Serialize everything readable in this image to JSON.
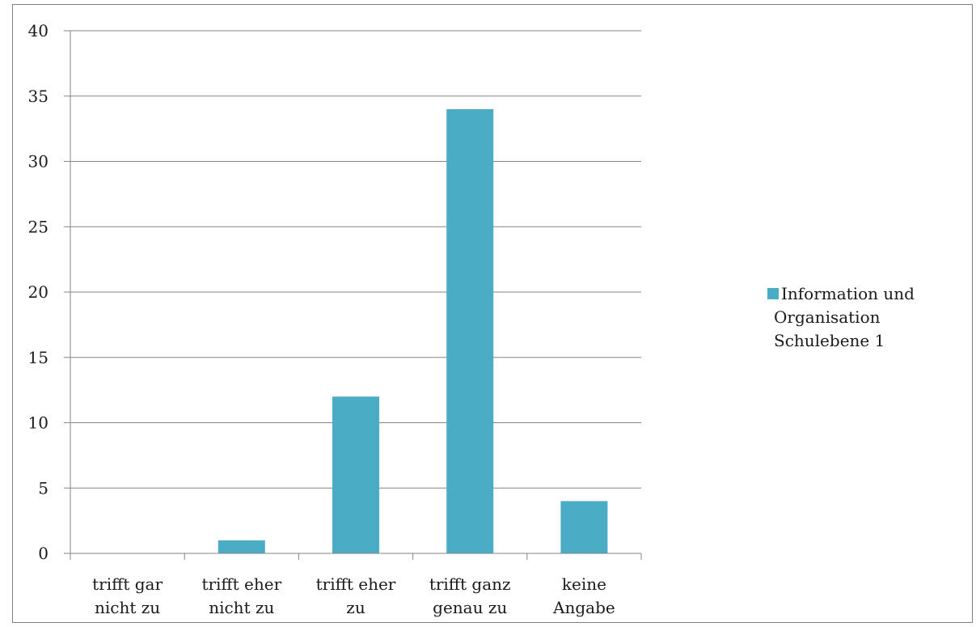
{
  "chart_data": {
    "type": "bar",
    "categories": [
      [
        "trifft gar",
        "nicht zu"
      ],
      [
        "trifft eher",
        "nicht zu"
      ],
      [
        "trifft eher",
        "zu"
      ],
      [
        "trifft ganz",
        "genau zu"
      ],
      [
        "keine",
        "Angabe"
      ]
    ],
    "series": [
      {
        "name": [
          "Information und",
          "Organisation",
          "Schulebene 1"
        ],
        "values": [
          0,
          1,
          12,
          34,
          4
        ],
        "color": "#4bacc6"
      }
    ],
    "ylim": [
      0,
      40
    ],
    "yticks": [
      0,
      5,
      10,
      15,
      20,
      25,
      30,
      35,
      40
    ],
    "grid": true,
    "legend": "right",
    "title": "",
    "xlabel": "",
    "ylabel": ""
  }
}
